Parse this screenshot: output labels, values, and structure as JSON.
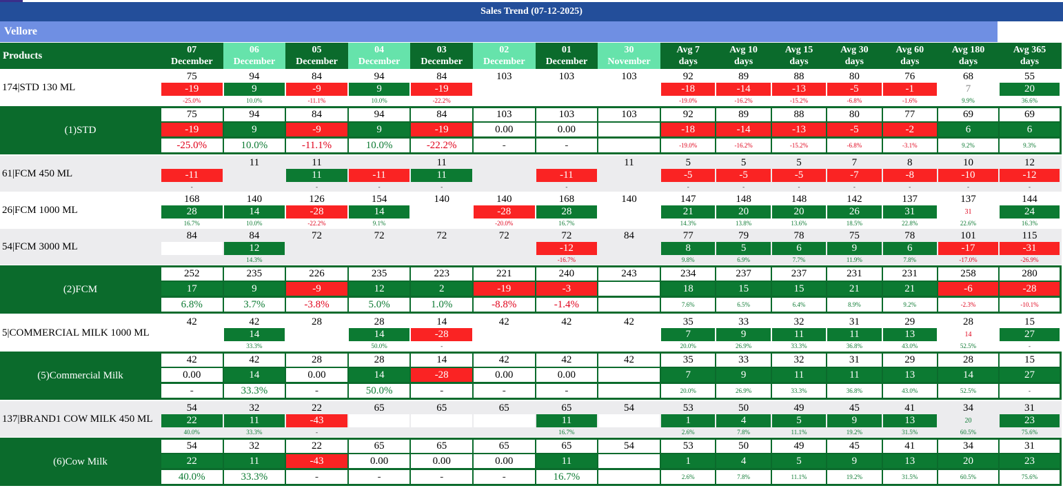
{
  "title": "Sales Trend (07-12-2025)",
  "region": "Vellore",
  "header": {
    "products": "Products",
    "columns": [
      {
        "top": "07",
        "bottom": "December"
      },
      {
        "top": "06",
        "bottom": "December"
      },
      {
        "top": "05",
        "bottom": "December"
      },
      {
        "top": "04",
        "bottom": "December"
      },
      {
        "top": "03",
        "bottom": "December"
      },
      {
        "top": "02",
        "bottom": "December"
      },
      {
        "top": "01",
        "bottom": "December"
      },
      {
        "top": "30",
        "bottom": "November"
      },
      {
        "top": "Avg 7",
        "bottom": "days"
      },
      {
        "top": "Avg 10",
        "bottom": "days"
      },
      {
        "top": "Avg 15",
        "bottom": "days"
      },
      {
        "top": "Avg 30",
        "bottom": "days"
      },
      {
        "top": "Avg 60",
        "bottom": "days"
      },
      {
        "top": "Avg 180",
        "bottom": "days"
      },
      {
        "top": "Avg 365",
        "bottom": "days"
      }
    ]
  },
  "rows": [
    {
      "label": "174|STD 130 ML",
      "kind": "item",
      "values": [
        75,
        94,
        84,
        94,
        84,
        103,
        103,
        103,
        92,
        89,
        88,
        80,
        76,
        68,
        55
      ],
      "changes": [
        -19,
        9,
        -9,
        9,
        -19,
        null,
        null,
        null,
        -18,
        -14,
        -13,
        -5,
        -1,
        7,
        20
      ],
      "fills": [
        "red",
        "green",
        "red",
        "green",
        "red",
        null,
        null,
        null,
        "red",
        "red",
        "red",
        "red",
        "red",
        "text-gray",
        "green"
      ],
      "percents": [
        "-25.0%",
        "10.0%",
        "-11.1%",
        "10.0%",
        "-22.2%",
        null,
        null,
        null,
        "-19.0%",
        "-16.2%",
        "-15.2%",
        "-6.8%",
        "-1.6%",
        "9.9%",
        "36.6%"
      ]
    },
    {
      "label": "(1)STD",
      "kind": "group",
      "values": [
        75,
        94,
        84,
        94,
        84,
        103,
        103,
        103,
        92,
        89,
        88,
        80,
        77,
        69,
        69
      ],
      "changes": [
        -19,
        9,
        -9,
        9,
        -19,
        "0.00",
        "0.00",
        null,
        -18,
        -14,
        -13,
        -5,
        -2,
        6,
        6
      ],
      "fills": [
        "red",
        "green",
        "red",
        "green",
        "red",
        null,
        null,
        null,
        "red",
        "red",
        "red",
        "red",
        "red",
        "green",
        "green"
      ],
      "percents": [
        "-25.0%",
        "10.0%",
        "-11.1%",
        "10.0%",
        "-22.2%",
        "-",
        "-",
        null,
        "-19.0%",
        "-16.2%",
        "-15.2%",
        "-6.8%",
        "-3.1%",
        "9.2%",
        "9.3%"
      ]
    },
    {
      "label": "61|FCM 450 ML",
      "kind": "item",
      "shade": "gray",
      "values": [
        null,
        11,
        11,
        null,
        11,
        null,
        null,
        11,
        5,
        5,
        5,
        7,
        8,
        10,
        12
      ],
      "changes": [
        -11,
        null,
        11,
        -11,
        11,
        null,
        -11,
        null,
        -5,
        -5,
        -5,
        -7,
        -8,
        -10,
        -12
      ],
      "fills": [
        "red",
        null,
        "green",
        "red",
        "green",
        null,
        "red",
        null,
        "red",
        "red",
        "red",
        "red",
        "red",
        "red",
        "red"
      ],
      "percents": [
        "-",
        null,
        "-",
        "-",
        "-",
        null,
        "-",
        null,
        "-",
        "-",
        "-",
        "-",
        "-",
        "-",
        "-"
      ]
    },
    {
      "label": "26|FCM 1000 ML",
      "kind": "item",
      "values": [
        168,
        140,
        126,
        154,
        140,
        140,
        168,
        140,
        147,
        148,
        148,
        142,
        137,
        137,
        144
      ],
      "changes": [
        28,
        14,
        -28,
        14,
        null,
        -28,
        28,
        null,
        21,
        20,
        20,
        26,
        31,
        31,
        24
      ],
      "fills": [
        "green",
        "green",
        "red",
        "green",
        null,
        "red",
        "green",
        null,
        "green",
        "green",
        "green",
        "green",
        "green",
        "text-red",
        "green"
      ],
      "percents": [
        "16.7%",
        "10.0%",
        "-22.2%",
        "9.1%",
        null,
        "-20.0%",
        "16.7%",
        null,
        "14.3%",
        "13.8%",
        "13.6%",
        "18.5%",
        "22.8%",
        "22.6%",
        "16.3%"
      ]
    },
    {
      "label": "54|FCM 3000 ML",
      "kind": "item",
      "shade": "gray",
      "values": [
        84,
        84,
        72,
        72,
        72,
        72,
        72,
        84,
        77,
        79,
        78,
        75,
        78,
        101,
        115
      ],
      "changes": [
        null,
        12,
        null,
        null,
        null,
        null,
        -12,
        null,
        8,
        5,
        6,
        9,
        6,
        -17,
        -31
      ],
      "fills": [
        "white",
        "green",
        null,
        null,
        null,
        null,
        "red",
        null,
        "green",
        "green",
        "green",
        "green",
        "green",
        "red",
        "red"
      ],
      "percents": [
        null,
        "14.3%",
        null,
        null,
        null,
        null,
        "-16.7%",
        null,
        "9.8%",
        "6.9%",
        "7.7%",
        "11.9%",
        "7.8%",
        "-17.0%",
        "-26.9%"
      ]
    },
    {
      "label": "(2)FCM",
      "kind": "group",
      "values": [
        252,
        235,
        226,
        235,
        223,
        221,
        240,
        243,
        234,
        237,
        237,
        231,
        231,
        258,
        280
      ],
      "changes": [
        17,
        9,
        -9,
        12,
        2,
        -19,
        -3,
        null,
        18,
        15,
        15,
        21,
        21,
        -6,
        -28
      ],
      "fills": [
        "green",
        "green",
        "red",
        "green",
        "green",
        "red",
        "red",
        null,
        "green",
        "green",
        "green",
        "green",
        "green",
        "red",
        "red"
      ],
      "percents": [
        "6.8%",
        "3.7%",
        "-3.8%",
        "5.0%",
        "1.0%",
        "-8.8%",
        "-1.4%",
        null,
        "7.6%",
        "6.5%",
        "6.4%",
        "8.9%",
        "9.2%",
        "-2.3%",
        "-10.1%"
      ]
    },
    {
      "label": "5|COMMERCIAL MILK 1000 ML",
      "kind": "item",
      "values": [
        42,
        42,
        28,
        28,
        14,
        42,
        42,
        42,
        35,
        33,
        32,
        31,
        29,
        28,
        15
      ],
      "changes": [
        null,
        14,
        null,
        14,
        -28,
        null,
        null,
        null,
        7,
        9,
        11,
        11,
        13,
        14,
        27
      ],
      "fills": [
        null,
        "green",
        null,
        "green",
        "red",
        null,
        null,
        null,
        "green",
        "green",
        "green",
        "green",
        "green",
        "text-red",
        "green"
      ],
      "percents": [
        null,
        "33.3%",
        null,
        "50.0%",
        "-",
        null,
        null,
        null,
        "20.0%",
        "26.9%",
        "33.3%",
        "36.8%",
        "43.0%",
        "52.5%",
        "-"
      ]
    },
    {
      "label": "(5)Commercial Milk",
      "kind": "group",
      "values": [
        42,
        42,
        28,
        28,
        14,
        42,
        42,
        42,
        35,
        33,
        32,
        31,
        29,
        28,
        15
      ],
      "changes": [
        "0.00",
        14,
        "0.00",
        14,
        -28,
        "0.00",
        "0.00",
        null,
        7,
        9,
        11,
        11,
        13,
        14,
        27
      ],
      "fills": [
        null,
        "green",
        null,
        "green",
        "red",
        null,
        null,
        null,
        "green",
        "green",
        "green",
        "green",
        "green",
        "green",
        "green"
      ],
      "percents": [
        "-",
        "33.3%",
        "-",
        "50.0%",
        "-",
        "-",
        "-",
        null,
        "20.0%",
        "26.9%",
        "33.3%",
        "36.8%",
        "43.0%",
        "52.5%",
        "-"
      ]
    },
    {
      "label": "137|BRAND1 COW MILK 450 ML",
      "kind": "item",
      "shade": "gray",
      "values": [
        54,
        32,
        22,
        65,
        65,
        65,
        65,
        54,
        53,
        50,
        49,
        45,
        41,
        34,
        31
      ],
      "changes": [
        22,
        11,
        -43,
        null,
        null,
        null,
        11,
        null,
        1,
        4,
        5,
        9,
        13,
        20,
        23
      ],
      "fills": [
        "green",
        "green",
        "red",
        "white",
        "white",
        "white",
        "green",
        "white",
        "green",
        "green",
        "green",
        "green",
        "green",
        "text-green",
        "green"
      ],
      "percents": [
        "40.0%",
        "33.3%",
        "-",
        null,
        null,
        null,
        "16.7%",
        null,
        "2.6%",
        "7.8%",
        "11.1%",
        "19.2%",
        "31.5%",
        "60.5%",
        "75.6%"
      ]
    },
    {
      "label": "(6)Cow Milk",
      "kind": "group",
      "values": [
        54,
        32,
        22,
        65,
        65,
        65,
        65,
        54,
        53,
        50,
        49,
        45,
        41,
        34,
        31
      ],
      "changes": [
        22,
        11,
        -43,
        "0.00",
        "0.00",
        "0.00",
        11,
        null,
        1,
        4,
        5,
        9,
        13,
        20,
        23
      ],
      "fills": [
        "green",
        "green",
        "red",
        null,
        null,
        null,
        "green",
        null,
        "green",
        "green",
        "green",
        "green",
        "green",
        "green",
        "green"
      ],
      "percents": [
        "40.0%",
        "33.3%",
        "-",
        "-",
        "-",
        "-",
        "16.7%",
        null,
        "2.6%",
        "7.8%",
        "11.1%",
        "19.2%",
        "31.5%",
        "60.5%",
        "75.6%"
      ]
    }
  ]
}
